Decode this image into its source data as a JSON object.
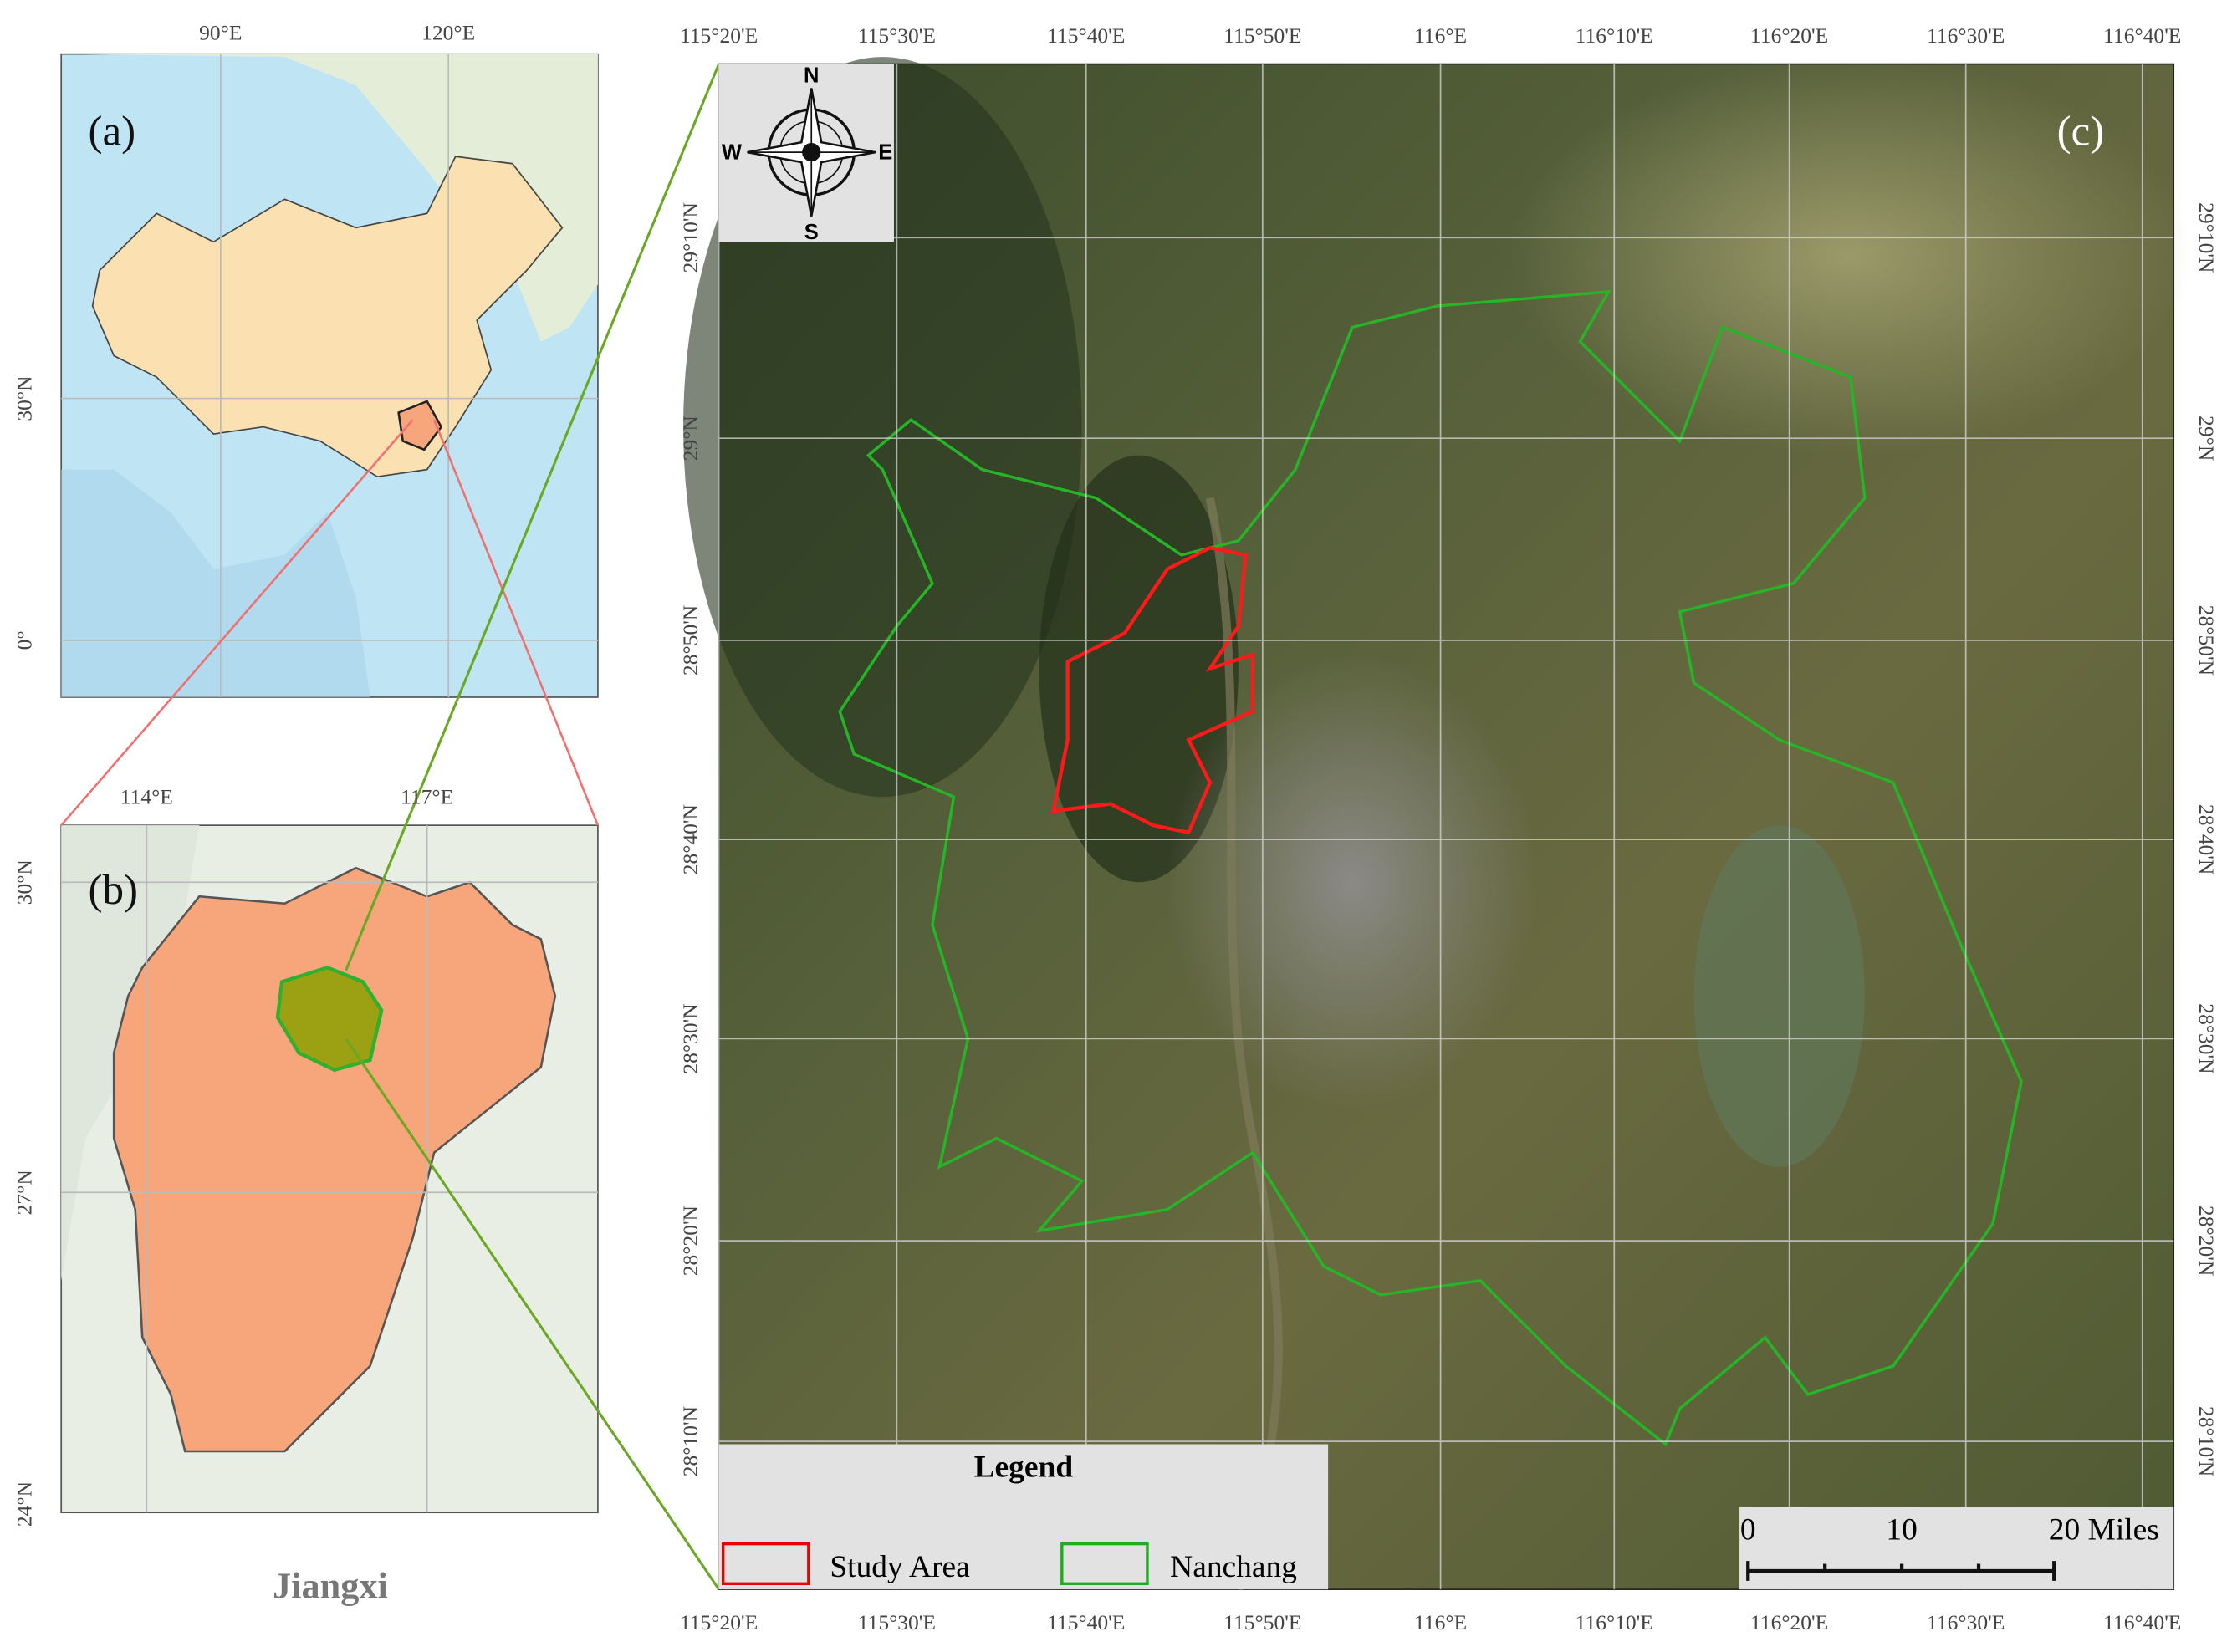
{
  "panels": {
    "a": {
      "label": "(a)",
      "top_ticks": [
        "90°E",
        "120°E"
      ],
      "left_ticks": [
        "30°N",
        "0°"
      ]
    },
    "b": {
      "label": "(b)",
      "top_ticks": [
        "114°E",
        "117°E"
      ],
      "left_ticks": [
        "30°N",
        "27°N",
        "24°N"
      ],
      "caption": "Jiangxi"
    },
    "c": {
      "label": "(c)",
      "lon_ticks": [
        "115°20'E",
        "115°30'E",
        "115°40'E",
        "115°50'E",
        "116°E",
        "116°10'E",
        "116°20'E",
        "116°30'E",
        "116°40'E"
      ],
      "lat_ticks": [
        "29°10'N",
        "29°N",
        "28°50'N",
        "28°40'N",
        "28°30'N",
        "28°20'N",
        "28°10'N"
      ]
    }
  },
  "compass": {
    "n": "N",
    "s": "S",
    "e": "E",
    "w": "W"
  },
  "legend": {
    "title": "Legend",
    "items": [
      "Study Area",
      "Nanchang"
    ]
  },
  "scale_bar": {
    "labels": [
      "0",
      "10",
      "20 Miles"
    ]
  }
}
